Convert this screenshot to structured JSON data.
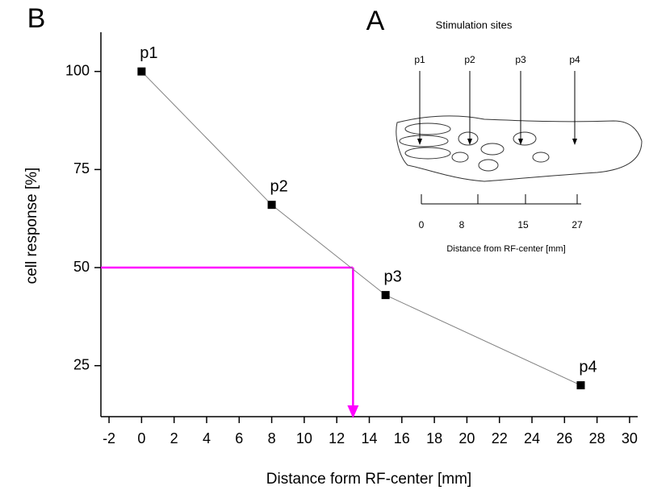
{
  "chart_data": {
    "type": "line",
    "panel_label": "B",
    "x": [
      0,
      8,
      15,
      27
    ],
    "series": [
      {
        "name": "cell response",
        "color": "#808080",
        "marker_color": "#000000",
        "values": [
          100,
          66,
          43,
          20
        ]
      }
    ],
    "point_labels": [
      "p1",
      "p2",
      "p3",
      "p4"
    ],
    "xlabel": "Distance form RF-center [mm]",
    "ylabel": "cell response [%]",
    "xlim": [
      -2.5,
      30.5
    ],
    "ylim": [
      12,
      110
    ],
    "xticks": [
      -2,
      0,
      2,
      4,
      6,
      8,
      10,
      12,
      14,
      16,
      18,
      20,
      22,
      24,
      26,
      28,
      30
    ],
    "yticks": [
      25,
      50,
      75,
      100
    ],
    "annotation": {
      "x": 13,
      "y": 50,
      "color": "#ff00ff"
    },
    "inset": {
      "panel_label": "A",
      "title": "Stimulation sites",
      "site_labels": [
        "p1",
        "p2",
        "p3",
        "p4"
      ],
      "tick_labels": [
        "0",
        "8",
        "15",
        "27"
      ],
      "xlabel": "Distance from RF-center [mm]"
    }
  }
}
